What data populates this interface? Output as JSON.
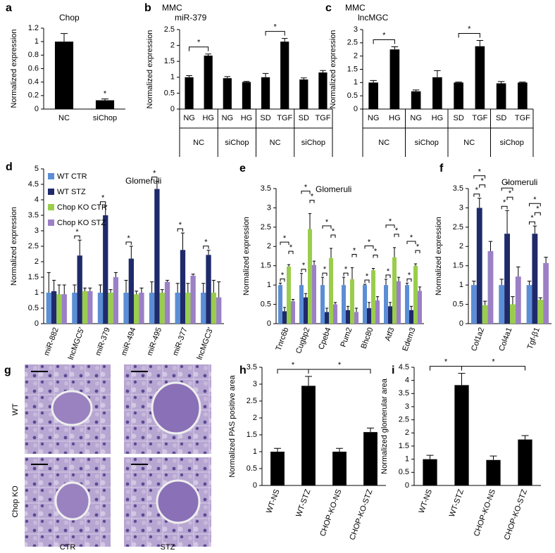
{
  "chart_data": [
    {
      "type": "bar",
      "panel": "a",
      "title": "Chop",
      "ylabel": "Normalized expression",
      "categories": [
        "NC",
        "siChop"
      ],
      "values": [
        1.0,
        0.13
      ],
      "errors": [
        0.12,
        0.02
      ],
      "color": "#000000",
      "ylim": [
        0,
        1.2
      ],
      "yticks": [
        0,
        0.2,
        0.4,
        0.6,
        0.8,
        1,
        1.2
      ],
      "significance": [
        {
          "label": "*",
          "categories": [
            1
          ]
        }
      ]
    },
    {
      "type": "bar",
      "panel": "b",
      "title": "MMC",
      "subtitle": "miR-379",
      "ylabel": "Normalized expression",
      "categories": [
        "NG",
        "HG",
        "NG",
        "HG",
        "SD",
        "TGF",
        "SD",
        "TGF"
      ],
      "groups": [
        {
          "label": "NC",
          "span": 2
        },
        {
          "label": "siChop",
          "span": 2
        },
        {
          "label": "NC",
          "span": 2
        },
        {
          "label": "siChop",
          "span": 2
        }
      ],
      "values": [
        1.0,
        1.68,
        0.97,
        0.85,
        1.0,
        2.12,
        0.93,
        1.15
      ],
      "errors": [
        0.05,
        0.05,
        0.05,
        0.02,
        0.12,
        0.1,
        0.05,
        0.06
      ],
      "color": "#000000",
      "ylim": [
        0,
        2.5
      ],
      "yticks": [
        0,
        0.5,
        1,
        1.5,
        2,
        2.5
      ],
      "significance": [
        {
          "label": "*",
          "categories": [
            0,
            1
          ]
        },
        {
          "label": "*",
          "categories": [
            4,
            5
          ]
        }
      ]
    },
    {
      "type": "bar",
      "panel": "c",
      "title": "MMC",
      "subtitle": "lncMGC",
      "ylabel": "Normalized expression",
      "categories": [
        "NG",
        "HG",
        "NG",
        "HG",
        "SD",
        "TGF",
        "SD",
        "TGF"
      ],
      "groups": [
        {
          "label": "NC",
          "span": 2
        },
        {
          "label": "siChop",
          "span": 2
        },
        {
          "label": "NC",
          "span": 2
        },
        {
          "label": "siChop",
          "span": 2
        }
      ],
      "values": [
        1.0,
        2.25,
        0.67,
        1.2,
        1.0,
        2.37,
        0.97,
        1.0
      ],
      "errors": [
        0.08,
        0.1,
        0.05,
        0.25,
        0.02,
        0.22,
        0.07,
        0.02
      ],
      "color": "#000000",
      "ylim": [
        0,
        3
      ],
      "yticks": [
        0,
        0.5,
        1,
        1.5,
        2,
        2.5,
        3
      ],
      "significance": [
        {
          "label": "*",
          "categories": [
            0,
            1
          ]
        },
        {
          "label": "*",
          "categories": [
            4,
            5
          ]
        }
      ]
    },
    {
      "type": "grouped_bar",
      "panel": "d",
      "title": "Glomeruli",
      "ylabel": "Normalized expression",
      "legend": "top-left",
      "categories": [
        "miR-882",
        "lncMGC5′",
        "miR-379",
        "miR-494",
        "miR-495",
        "miR-377",
        "lncMGC3′"
      ],
      "series": [
        {
          "name": "WT CTR",
          "color": "#5b8ed6",
          "values": [
            1,
            1,
            1,
            1,
            1,
            1,
            1
          ],
          "errors": [
            0.65,
            0.25,
            0.25,
            0.4,
            0.35,
            0.3,
            0.3
          ]
        },
        {
          "name": "WT STZ",
          "color": "#1f2a6b",
          "values": [
            1.05,
            2.2,
            3.5,
            2.1,
            4.35,
            2.38,
            2.22
          ],
          "errors": [
            0.35,
            0.5,
            0.3,
            0.4,
            0.25,
            0.55,
            0.15
          ]
        },
        {
          "name": "Chop KO CTR",
          "color": "#9acd4c",
          "values": [
            0.95,
            1.05,
            1.0,
            0.95,
            1.0,
            1.0,
            1.0
          ],
          "errors": [
            0.3,
            0.1,
            0.1,
            0.1,
            0.1,
            0.3,
            0.4
          ]
        },
        {
          "name": "Chop KO STZ",
          "color": "#9b80c6",
          "values": [
            0.95,
            1.05,
            1.5,
            1.0,
            1.35,
            1.55,
            0.85
          ],
          "errors": [
            0.3,
            0.1,
            0.15,
            0.15,
            0.05,
            0.05,
            0.5
          ]
        }
      ],
      "ylim": [
        0,
        5
      ],
      "yticks": [
        0,
        0.5,
        1,
        1.5,
        2,
        2.5,
        3,
        3.5,
        4,
        4.5,
        5
      ],
      "significance": [
        {
          "label": "*",
          "category": 1,
          "series": [
            0,
            1
          ]
        },
        {
          "label": "*",
          "category": 2,
          "series": [
            0,
            1
          ]
        },
        {
          "label": "*",
          "category": 3,
          "series": [
            0,
            1
          ]
        },
        {
          "label": "*",
          "category": 4,
          "series": [
            0,
            1
          ]
        },
        {
          "label": "*",
          "category": 5,
          "series": [
            0,
            1
          ]
        },
        {
          "label": "*",
          "category": 6,
          "series": [
            0,
            1
          ]
        }
      ]
    },
    {
      "type": "grouped_bar",
      "panel": "e",
      "title": "Glomeruli",
      "ylabel": "Normalized expression",
      "categories": [
        "Tnrc6b",
        "Cugbp2",
        "Cpeb4",
        "Pum2",
        "Bhc80",
        "Atf3",
        "Edem3"
      ],
      "series": [
        {
          "color": "#5b8ed6",
          "values": [
            1,
            1,
            1,
            1,
            1,
            1,
            1
          ],
          "errors": [
            0.05,
            0.3,
            0.2,
            0.2,
            0.02,
            0.15,
            0.05
          ]
        },
        {
          "color": "#1f2a6b",
          "values": [
            0.32,
            0.68,
            0.3,
            0.35,
            0.4,
            0.45,
            0.35
          ],
          "errors": [
            0.1,
            0.1,
            0.1,
            0.1,
            0.15,
            0.1,
            0.1
          ]
        },
        {
          "color": "#9acd4c",
          "values": [
            1.48,
            2.45,
            1.7,
            1.15,
            1.38,
            1.72,
            1.5
          ],
          "errors": [
            0.05,
            0.4,
            0.25,
            0.3,
            0.05,
            0.25,
            0.05
          ]
        },
        {
          "color": "#9b80c6",
          "values": [
            0.58,
            1.52,
            0.5,
            0.3,
            0.6,
            1.1,
            0.85
          ],
          "errors": [
            0.05,
            0.1,
            0.05,
            0.1,
            0.1,
            0.1,
            0.1
          ]
        }
      ],
      "ylim": [
        0,
        3.5
      ],
      "yticks": [
        0,
        0.5,
        1,
        1.5,
        2,
        2.5,
        3,
        3.5
      ],
      "significance": [
        {
          "label": "*",
          "category": 0,
          "series": [
            0,
            1
          ]
        },
        {
          "label": "*",
          "category": 0,
          "series": [
            2,
            3
          ]
        },
        {
          "label": "*",
          "category": 0,
          "series": [
            0,
            2
          ]
        },
        {
          "label": "*",
          "category": 1,
          "series": [
            0,
            1
          ]
        },
        {
          "label": "*",
          "category": 1,
          "series": [
            2,
            3
          ]
        },
        {
          "label": "*",
          "category": 1,
          "series": [
            0,
            2
          ]
        },
        {
          "label": "*",
          "category": 2,
          "series": [
            0,
            1
          ]
        },
        {
          "label": "*",
          "category": 2,
          "series": [
            2,
            3
          ]
        },
        {
          "label": "*",
          "category": 2,
          "series": [
            0,
            2
          ]
        },
        {
          "label": "*",
          "category": 3,
          "series": [
            0,
            1
          ]
        },
        {
          "label": "*",
          "category": 3,
          "series": [
            2,
            3
          ]
        },
        {
          "label": "*",
          "category": 4,
          "series": [
            0,
            1
          ]
        },
        {
          "label": "*",
          "category": 4,
          "series": [
            2,
            3
          ]
        },
        {
          "label": "*",
          "category": 4,
          "series": [
            0,
            2
          ]
        },
        {
          "label": "*",
          "category": 5,
          "series": [
            0,
            1
          ]
        },
        {
          "label": "*",
          "category": 5,
          "series": [
            2,
            3
          ]
        },
        {
          "label": "*",
          "category": 5,
          "series": [
            0,
            2
          ]
        },
        {
          "label": "*",
          "category": 6,
          "series": [
            0,
            1
          ]
        },
        {
          "label": "*",
          "category": 6,
          "series": [
            2,
            3
          ]
        },
        {
          "label": "*",
          "category": 6,
          "series": [
            0,
            2
          ]
        }
      ]
    },
    {
      "type": "grouped_bar",
      "panel": "f",
      "title": "Glomeruli",
      "ylabel": "Normalized expression",
      "categories": [
        "Col1a2",
        "Col4a1",
        "Tgf-β1"
      ],
      "series": [
        {
          "color": "#5b8ed6",
          "values": [
            1,
            1,
            1
          ],
          "errors": [
            0.1,
            0.15,
            0.1
          ]
        },
        {
          "color": "#1f2a6b",
          "values": [
            3.0,
            2.33,
            2.33
          ],
          "errors": [
            0.25,
            0.6,
            0.2
          ]
        },
        {
          "color": "#9acd4c",
          "values": [
            0.48,
            0.5,
            0.62
          ],
          "errors": [
            0.1,
            0.2,
            0.05
          ]
        },
        {
          "color": "#9b80c6",
          "values": [
            1.88,
            1.22,
            1.57
          ],
          "errors": [
            0.25,
            0.25,
            0.15
          ]
        }
      ],
      "ylim": [
        0,
        3.5
      ],
      "yticks": [
        0,
        0.5,
        1,
        1.5,
        2,
        2.5,
        3,
        3.5
      ],
      "significance": [
        {
          "label": "*",
          "category": 0,
          "series": [
            0,
            1
          ]
        },
        {
          "label": "*",
          "category": 0,
          "series": [
            1,
            2
          ]
        },
        {
          "label": "*",
          "category": 0,
          "series": [
            0,
            2
          ]
        },
        {
          "label": "*",
          "category": 1,
          "series": [
            0,
            1
          ]
        },
        {
          "label": "*",
          "category": 1,
          "series": [
            1,
            2
          ]
        },
        {
          "label": "*",
          "category": 1,
          "series": [
            0,
            2
          ]
        },
        {
          "label": "*",
          "category": 2,
          "series": [
            0,
            1
          ]
        },
        {
          "label": "*",
          "category": 2,
          "series": [
            1,
            2
          ]
        },
        {
          "label": "*",
          "category": 2,
          "series": [
            0,
            2
          ]
        }
      ]
    },
    {
      "type": "bar",
      "panel": "h",
      "ylabel": "Normalized PAS positive area",
      "categories": [
        "WT-NS",
        "WT-STZ",
        "CHOP-KO-NS",
        "CHOP-KO-STZ"
      ],
      "values": [
        1.0,
        2.95,
        1.0,
        1.58
      ],
      "errors": [
        0.1,
        0.28,
        0.1,
        0.12
      ],
      "color": "#000000",
      "ylim": [
        0,
        3.5
      ],
      "yticks": [
        0,
        0.5,
        1,
        1.5,
        2,
        2.5,
        3,
        3.5
      ],
      "significance": [
        {
          "label": "*",
          "categories": [
            0,
            1
          ]
        },
        {
          "label": "*",
          "categories": [
            1,
            3
          ]
        }
      ]
    },
    {
      "type": "bar",
      "panel": "i",
      "ylabel": "Normalized glomerular area",
      "categories": [
        "WT-NS",
        "WT-STZ",
        "CHOP-KO-NS",
        "CHOP-KO-STZ"
      ],
      "values": [
        1.0,
        3.82,
        0.97,
        1.75
      ],
      "errors": [
        0.15,
        0.45,
        0.15,
        0.15
      ],
      "color": "#000000",
      "ylim": [
        0,
        4.5
      ],
      "yticks": [
        0,
        0.5,
        1,
        1.5,
        2,
        2.5,
        3,
        3.5,
        4,
        4.5
      ],
      "significance": [
        {
          "label": "*",
          "categories": [
            0,
            1
          ]
        },
        {
          "label": "*",
          "categories": [
            1,
            3
          ]
        }
      ]
    }
  ],
  "micrographs": {
    "panel": "g",
    "rows": [
      "WT",
      "Chop KO"
    ],
    "columns": [
      "CTR",
      "STZ"
    ]
  }
}
